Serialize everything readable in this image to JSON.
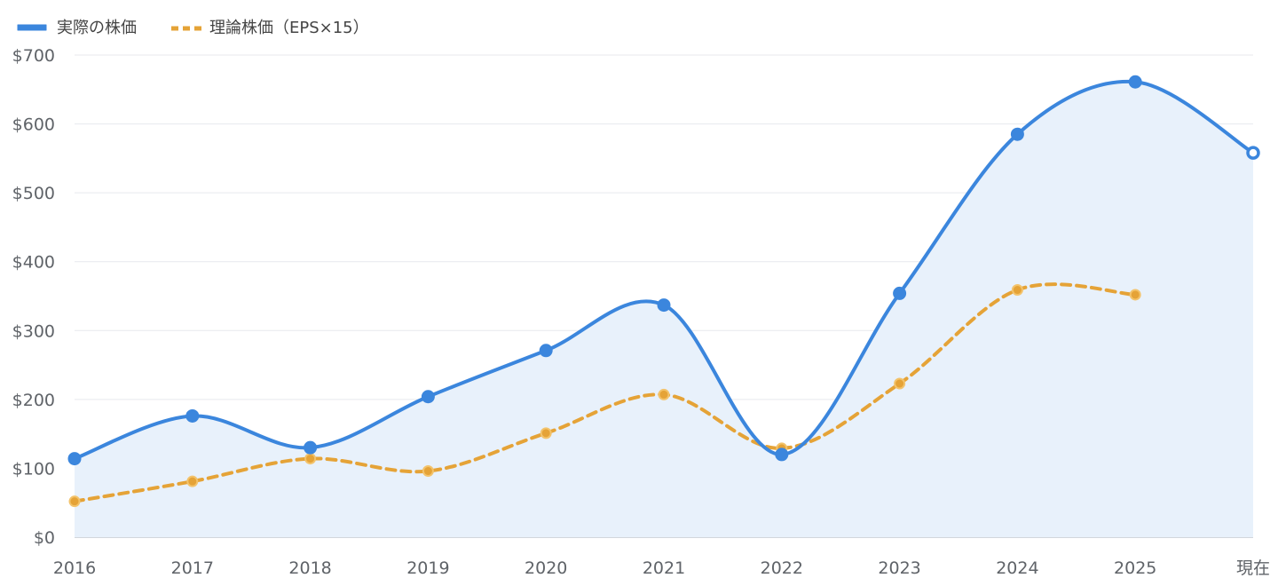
{
  "chart_data": {
    "type": "line",
    "categories": [
      "2016",
      "2017",
      "2018",
      "2019",
      "2020",
      "2021",
      "2022",
      "2023",
      "2024",
      "2025",
      "現在"
    ],
    "ylim": [
      0,
      700
    ],
    "yticks": [
      0,
      100,
      200,
      300,
      400,
      500,
      600,
      700
    ],
    "ytick_labels": [
      "$0",
      "$100",
      "$200",
      "$300",
      "$400",
      "$500",
      "$600",
      "$700"
    ],
    "grid": true,
    "legend_position": "top-left",
    "series": [
      {
        "name": "実際の株価",
        "values": [
          114,
          176,
          130,
          204,
          271,
          337,
          120,
          354,
          585,
          661,
          558
        ],
        "color": "#3b86dd",
        "line_style": "solid",
        "area_fill": "#e8f1fb"
      },
      {
        "name": "理論株価（EPS×15）",
        "values": [
          52,
          81,
          114,
          96,
          151,
          207,
          129,
          223,
          359,
          352,
          null
        ],
        "color": "#e5a337",
        "line_style": "dashed"
      }
    ]
  }
}
